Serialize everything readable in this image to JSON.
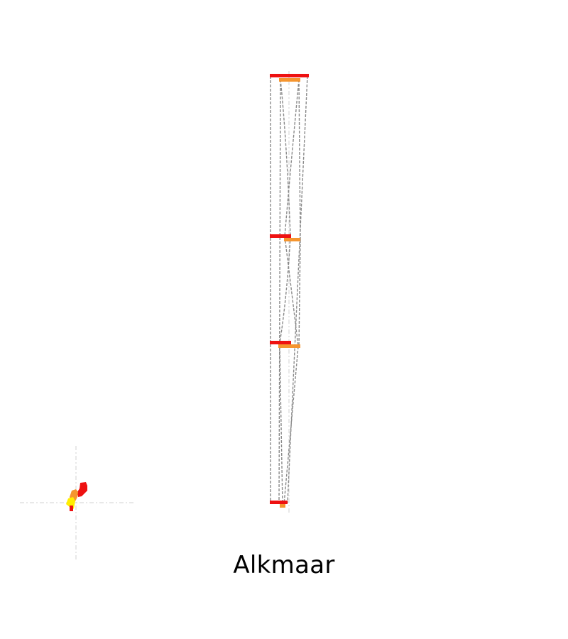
{
  "caption": "Alkmaar",
  "colors": {
    "primary_bar": "#ee1111",
    "secondary_bar": "#f5952f",
    "highlight": "#ffee00",
    "connector_line": "#8a8a8a",
    "axis_guide": "#d9d9d9",
    "background": "#ffffff"
  }
}
